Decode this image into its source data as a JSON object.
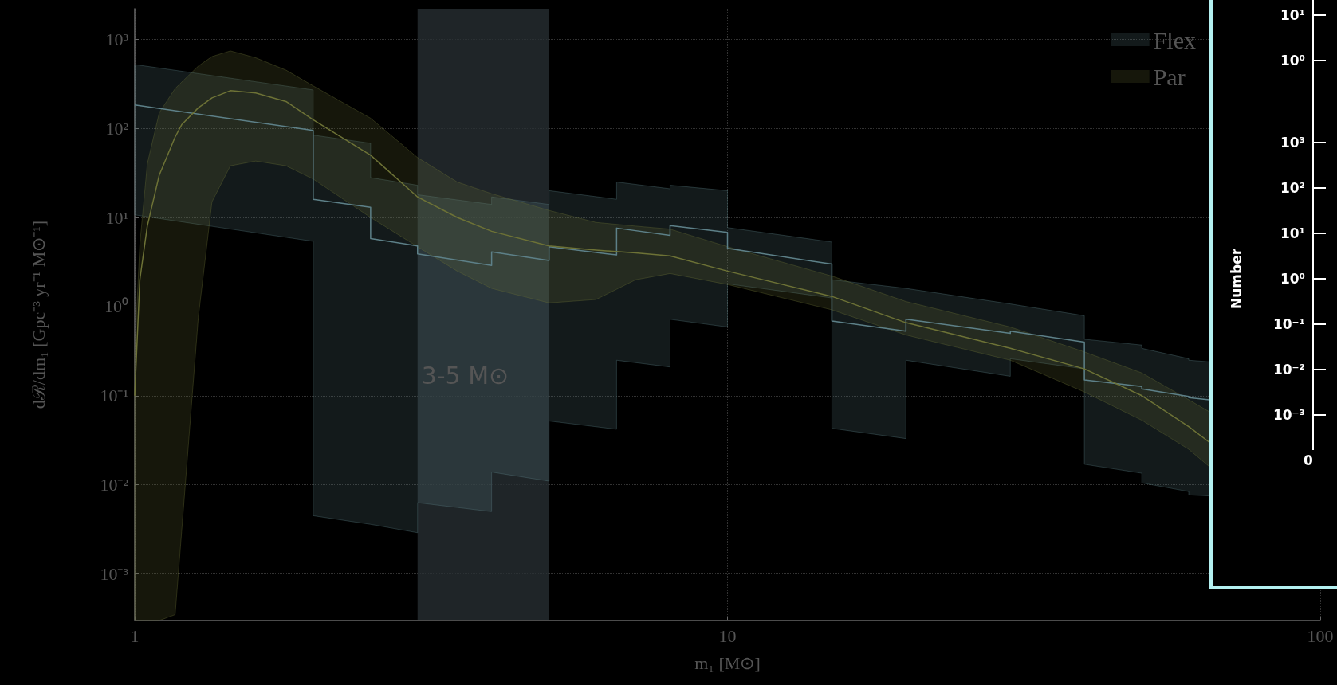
{
  "chart_data": [
    {
      "type": "line",
      "xlabel": "m₁ [M⊙]",
      "ylabel": "dℛ/dm₁ [Gpc⁻³ yr⁻¹ M⊙⁻¹]",
      "log": "xy",
      "grid": true,
      "legend": "top right",
      "xlim": [
        1,
        100
      ],
      "xticks": [
        1,
        10,
        100
      ],
      "ylim": [
        0.0003,
        2200
      ],
      "yticks": [
        {
          "value": 0.001,
          "label": "10⁻³"
        },
        {
          "value": 0.01,
          "label": "10⁻²"
        },
        {
          "value": 0.1,
          "label": "10⁻¹"
        },
        {
          "value": 1,
          "label": "10⁰"
        },
        {
          "value": 10,
          "label": "10¹"
        },
        {
          "value": 100,
          "label": "10²"
        },
        {
          "value": 1000,
          "label": "10³"
        }
      ],
      "bands": [
        {
          "axis": "x",
          "from": 3,
          "to": 5,
          "label": "3-5 M⊙",
          "color": "#2a3236"
        }
      ],
      "series": [
        {
          "name": "Flex",
          "color": "#5d8088",
          "x": [
            1,
            2,
            2,
            2.5,
            2.5,
            3,
            3,
            4,
            4,
            5,
            5,
            6.5,
            6.5,
            8,
            8,
            10,
            10,
            15,
            15,
            20,
            20,
            30,
            30,
            40,
            40,
            50,
            50,
            60,
            60,
            65
          ],
          "values": [
            183,
            95,
            16,
            13,
            5.8,
            4.8,
            3.9,
            2.9,
            4.1,
            3.3,
            4.7,
            3.8,
            7.6,
            6.3,
            8.1,
            6.8,
            4.5,
            3.0,
            0.69,
            0.53,
            0.72,
            0.5,
            0.53,
            0.4,
            0.15,
            0.127,
            0.119,
            0.098,
            0.095,
            0.09
          ],
          "upper": [
            520,
            270,
            84,
            68,
            28,
            23,
            18,
            14,
            17,
            14,
            20,
            16,
            25,
            21,
            23,
            20,
            7.7,
            5.3,
            2.0,
            1.6,
            1.6,
            1.07,
            1.07,
            0.79,
            0.43,
            0.37,
            0.34,
            0.26,
            0.25,
            0.24
          ],
          "lower": [
            10.7,
            5.4,
            0.0045,
            0.0036,
            0.0036,
            0.0029,
            0.0063,
            0.005,
            0.0139,
            0.011,
            0.052,
            0.042,
            0.25,
            0.21,
            0.72,
            0.59,
            1.8,
            1.25,
            0.043,
            0.033,
            0.25,
            0.165,
            0.26,
            0.2,
            0.017,
            0.0135,
            0.0105,
            0.0084,
            0.0077,
            0.0075
          ]
        },
        {
          "name": "Par",
          "color": "#6d7236",
          "x": [
            1.0,
            1.02,
            1.05,
            1.1,
            1.17,
            1.2,
            1.28,
            1.35,
            1.45,
            1.6,
            1.8,
            2,
            2.5,
            3,
            3.5,
            4,
            5,
            6,
            7,
            8,
            10,
            15,
            20,
            30,
            40,
            50,
            60,
            65
          ],
          "values": [
            0.1,
            2,
            8,
            30,
            80,
            110,
            170,
            220,
            265,
            250,
            200,
            125,
            50,
            17,
            10,
            7,
            4.8,
            4.3,
            4.0,
            3.7,
            2.5,
            1.3,
            0.66,
            0.34,
            0.2,
            0.1,
            0.045,
            0.03
          ],
          "upper": [
            0.3,
            5,
            40,
            150,
            280,
            330,
            500,
            640,
            740,
            620,
            450,
            300,
            130,
            47,
            25,
            18.5,
            12,
            8.8,
            8,
            7.4,
            4.7,
            2.2,
            1.14,
            0.59,
            0.31,
            0.18,
            0.09,
            0.066
          ],
          "lower": [
            0.0003,
            0.0003,
            0.0003,
            0.0003,
            0.00035,
            0.003,
            0.75,
            15,
            38,
            43,
            38,
            27,
            10,
            4.7,
            2.5,
            1.6,
            1.1,
            1.2,
            2.0,
            2.35,
            1.77,
            0.92,
            0.48,
            0.25,
            0.11,
            0.053,
            0.025,
            0.016
          ]
        }
      ]
    },
    {
      "type": "other",
      "annotations": [
        "10¹",
        "10⁰"
      ]
    },
    {
      "type": "other",
      "ylabel": "Number",
      "annotations": [
        "10³",
        "10²",
        "10¹",
        "10⁰",
        "10⁻¹",
        "10⁻²",
        "10⁻³",
        "0"
      ]
    }
  ]
}
